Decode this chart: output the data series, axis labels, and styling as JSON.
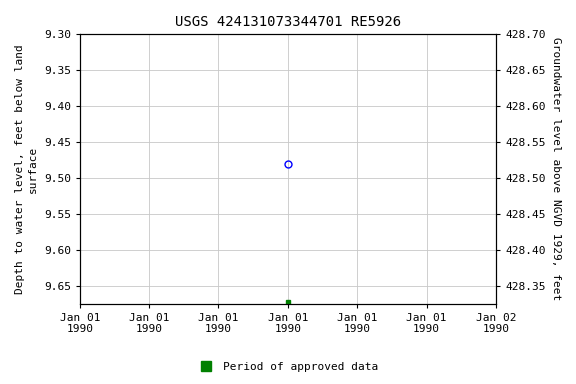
{
  "title": "USGS 424131073344701 RE5926",
  "ylabel_left": "Depth to water level, feet below land\nsurface",
  "ylabel_right": "Groundwater level above NGVD 1929, feet",
  "ylim_left_top": 9.3,
  "ylim_left_bottom": 9.675,
  "ylim_right_top": 428.7,
  "ylim_right_bottom": 428.325,
  "yticks_left": [
    9.3,
    9.35,
    9.4,
    9.45,
    9.5,
    9.55,
    9.6,
    9.65
  ],
  "yticks_right": [
    428.7,
    428.65,
    428.6,
    428.55,
    428.5,
    428.45,
    428.4,
    428.35
  ],
  "blue_x": 3.0,
  "blue_y": 9.48,
  "green_x": 3.0,
  "green_y": 9.672,
  "xlim": [
    0,
    6
  ],
  "xtick_positions": [
    0,
    1,
    2,
    3,
    4,
    5,
    6
  ],
  "xtick_labels": [
    "Jan 01\n1990",
    "Jan 01\n1990",
    "Jan 01\n1990",
    "Jan 01\n1990",
    "Jan 01\n1990",
    "Jan 01\n1990",
    "Jan 02\n1990"
  ],
  "legend_label": "Period of approved data",
  "legend_color": "#008000",
  "grid_color": "#c8c8c8",
  "background_color": "#ffffff",
  "title_fontsize": 10,
  "axis_label_fontsize": 8,
  "tick_fontsize": 8,
  "legend_fontsize": 8
}
